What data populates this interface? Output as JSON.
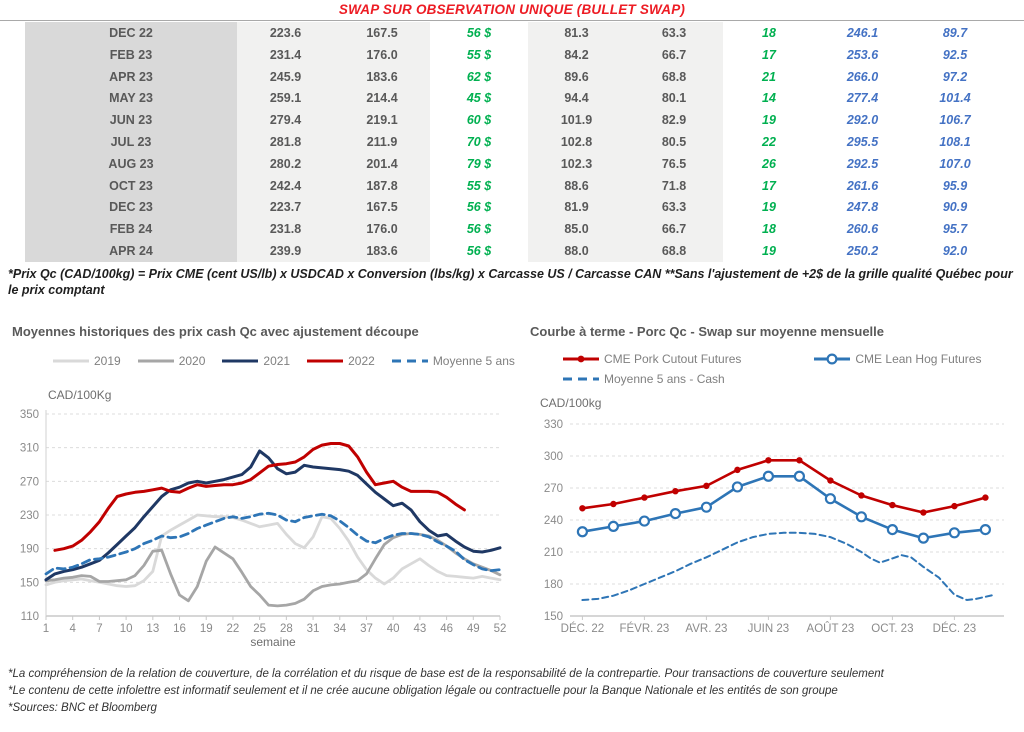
{
  "title": "SWAP SUR OBSERVATION UNIQUE (BULLET SWAP)",
  "colors": {
    "title_red": "#ED1C24",
    "table_green": "#00B050",
    "table_blue": "#4472C4",
    "text_gray": "#595959",
    "label_bg": "#d9d9d9",
    "block_bg": "#f1f1f0"
  },
  "table": {
    "rows": [
      {
        "month": "DEC 22",
        "cells": [
          "223.6",
          "167.5",
          "56 $",
          "81.3",
          "63.3",
          "18",
          "246.1",
          "89.7"
        ]
      },
      {
        "month": "FEB 23",
        "cells": [
          "231.4",
          "176.0",
          "55 $",
          "84.2",
          "66.7",
          "17",
          "253.6",
          "92.5"
        ]
      },
      {
        "month": "APR 23",
        "cells": [
          "245.9",
          "183.6",
          "62 $",
          "89.6",
          "68.8",
          "21",
          "266.0",
          "97.2"
        ]
      },
      {
        "month": "MAY 23",
        "cells": [
          "259.1",
          "214.4",
          "45 $",
          "94.4",
          "80.1",
          "14",
          "277.4",
          "101.4"
        ]
      },
      {
        "month": "JUN 23",
        "cells": [
          "279.4",
          "219.1",
          "60 $",
          "101.9",
          "82.9",
          "19",
          "292.0",
          "106.7"
        ]
      },
      {
        "month": "JUL 23",
        "cells": [
          "281.8",
          "211.9",
          "70 $",
          "102.8",
          "80.5",
          "22",
          "295.5",
          "108.1"
        ]
      },
      {
        "month": "AUG 23",
        "cells": [
          "280.2",
          "201.4",
          "79 $",
          "102.3",
          "76.5",
          "26",
          "292.5",
          "107.0"
        ]
      },
      {
        "month": "OCT 23",
        "cells": [
          "242.4",
          "187.8",
          "55 $",
          "88.6",
          "71.8",
          "17",
          "261.6",
          "95.9"
        ]
      },
      {
        "month": "DEC 23",
        "cells": [
          "223.7",
          "167.5",
          "56 $",
          "81.9",
          "63.3",
          "19",
          "247.8",
          "90.9"
        ]
      },
      {
        "month": "FEB 24",
        "cells": [
          "231.8",
          "176.0",
          "56 $",
          "85.0",
          "66.7",
          "18",
          "260.6",
          "95.7"
        ]
      },
      {
        "month": "APR 24",
        "cells": [
          "239.9",
          "183.6",
          "56 $",
          "88.0",
          "68.8",
          "19",
          "250.2",
          "92.0"
        ]
      }
    ]
  },
  "table_footnote": "*Prix Qc (CAD/100kg) = Prix CME (cent US/lb) x USDCAD x Conversion (lbs/kg) x Carcasse US / Carcasse CAN **Sans l'ajustement de +2$ de la grille qualité Québec pour le prix comptant",
  "chart_data": [
    {
      "type": "line",
      "title": "Moyennes historiques des prix cash Qc avec ajustement découpe",
      "unit_label": "CAD/100Kg",
      "xlabel": "semaine",
      "xlim": [
        1,
        52
      ],
      "ylim": [
        110,
        350
      ],
      "yticks": [
        110,
        150,
        190,
        230,
        270,
        310,
        350
      ],
      "xticks": [
        1,
        4,
        7,
        10,
        13,
        16,
        19,
        22,
        25,
        28,
        31,
        34,
        37,
        40,
        43,
        46,
        49,
        52
      ],
      "grid": "dashed-horizontal",
      "legend_position": "top",
      "series": [
        {
          "name": "2019",
          "color": "#d9d9d9",
          "style": "solid",
          "width": 2.8,
          "x_start": 1,
          "values": [
            147,
            150,
            152,
            153,
            154,
            152,
            150,
            148,
            146,
            145,
            146,
            152,
            163,
            205,
            212,
            218,
            224,
            230,
            229,
            228,
            228,
            227,
            224,
            220,
            216,
            218,
            220,
            207,
            196,
            191,
            204,
            228,
            226,
            214,
            199,
            180,
            165,
            155,
            148,
            155,
            166,
            172,
            178,
            170,
            163,
            158,
            157,
            156,
            155,
            157,
            155,
            153
          ]
        },
        {
          "name": "2020",
          "color": "#a6a6a6",
          "style": "solid",
          "width": 2.8,
          "x_start": 1,
          "values": [
            152,
            153,
            155,
            156,
            158,
            157,
            151,
            151,
            152,
            153,
            158,
            170,
            187,
            188,
            160,
            135,
            128,
            145,
            175,
            192,
            185,
            178,
            162,
            145,
            135,
            123,
            122,
            123,
            125,
            130,
            140,
            145,
            147,
            148,
            150,
            152,
            160,
            178,
            195,
            203,
            207,
            208,
            207,
            205,
            200,
            193,
            185,
            178,
            172,
            168,
            164,
            159
          ]
        },
        {
          "name": "2021",
          "color": "#1f3864",
          "style": "solid",
          "width": 3,
          "x_start": 1,
          "values": [
            153,
            160,
            163,
            165,
            168,
            172,
            176,
            185,
            195,
            205,
            215,
            228,
            240,
            252,
            260,
            263,
            268,
            270,
            268,
            270,
            272,
            275,
            278,
            287,
            306,
            298,
            285,
            279,
            281,
            289,
            287,
            286,
            285,
            284,
            282,
            277,
            267,
            257,
            249,
            241,
            244,
            236,
            222,
            212,
            205,
            207,
            199,
            192,
            187,
            186,
            188,
            191
          ]
        },
        {
          "name": "2022",
          "color": "#c00000",
          "style": "solid",
          "width": 3,
          "x_start": 2,
          "values": [
            188,
            190,
            193,
            200,
            210,
            222,
            238,
            252,
            255,
            257,
            258,
            260,
            262,
            258,
            257,
            262,
            266,
            264,
            265,
            266,
            266,
            268,
            272,
            280,
            288,
            290,
            291,
            293,
            299,
            308,
            313,
            315,
            315,
            312,
            299,
            281,
            266,
            268,
            270,
            263,
            258,
            258,
            258,
            257,
            251,
            243,
            236
          ]
        },
        {
          "name": "Moyenne 5 ans",
          "color": "#2e75b6",
          "style": "dashed",
          "width": 2.8,
          "x_start": 1,
          "values": [
            160,
            167,
            166,
            168,
            172,
            177,
            178,
            180,
            183,
            186,
            190,
            196,
            200,
            205,
            203,
            204,
            208,
            214,
            218,
            222,
            226,
            228,
            226,
            228,
            231,
            232,
            230,
            224,
            222,
            227,
            229,
            231,
            229,
            223,
            215,
            206,
            199,
            197,
            202,
            206,
            208,
            208,
            207,
            204,
            198,
            193,
            187,
            177,
            171,
            166,
            164,
            165
          ]
        }
      ]
    },
    {
      "type": "line",
      "title": "Courbe à terme - Porc Qc - Swap sur moyenne mensuelle",
      "unit_label": "CAD/100kg",
      "xlabel": "",
      "xlim": [
        -0.4,
        13.6
      ],
      "ylim": [
        150,
        330
      ],
      "yticks": [
        150,
        180,
        210,
        240,
        270,
        300,
        330
      ],
      "xticks": [
        0,
        2,
        4,
        6,
        8,
        10,
        12
      ],
      "xtick_labels": [
        "DÉC. 22",
        "FÉVR. 23",
        "AVR. 23",
        "JUIN 23",
        "AOÛT 23",
        "OCT. 23",
        "DÉC. 23"
      ],
      "grid": "dashed-horizontal",
      "legend_position": "top",
      "series": [
        {
          "name": "CME Pork Cutout Futures",
          "color": "#c00000",
          "style": "solid",
          "width": 2.6,
          "marker": "dot",
          "x_start": 0,
          "values": [
            251,
            255,
            261,
            267,
            272,
            287,
            296,
            296,
            277,
            263,
            254,
            247,
            253,
            261
          ]
        },
        {
          "name": "CME Lean Hog Futures",
          "color": "#2e75b6",
          "style": "solid",
          "width": 2.6,
          "marker": "circle",
          "x_start": 0,
          "values": [
            229,
            234,
            239,
            246,
            252,
            271,
            281,
            281,
            260,
            243,
            231,
            223,
            228,
            231
          ]
        },
        {
          "name": "Moyenne 5 ans - Cash",
          "color": "#2e75b6",
          "style": "dashed",
          "width": 2,
          "points": [
            [
              0,
              165
            ],
            [
              0.5,
              166
            ],
            [
              1,
              169
            ],
            [
              1.5,
              174
            ],
            [
              2,
              180
            ],
            [
              2.5,
              186
            ],
            [
              3,
              192
            ],
            [
              3.5,
              199
            ],
            [
              4,
              205
            ],
            [
              4.5,
              212
            ],
            [
              5,
              219
            ],
            [
              5.5,
              224
            ],
            [
              6,
              227
            ],
            [
              6.5,
              228
            ],
            [
              7,
              228
            ],
            [
              7.5,
              227
            ],
            [
              8,
              224
            ],
            [
              8.5,
              218
            ],
            [
              9,
              210
            ],
            [
              9.3,
              204
            ],
            [
              9.6,
              200
            ],
            [
              10,
              204
            ],
            [
              10.3,
              207
            ],
            [
              10.6,
              205
            ],
            [
              11,
              196
            ],
            [
              11.5,
              186
            ],
            [
              12,
              170
            ],
            [
              12.4,
              165
            ],
            [
              12.7,
              166
            ],
            [
              13,
              168
            ],
            [
              13.3,
              170
            ]
          ]
        }
      ]
    }
  ],
  "footer": {
    "lines": [
      "*La compréhension de la relation de couverture, de la corrélation et du risque de base est de la responsabilité de la contrepartie. Pour transactions de couverture seulement",
      "*Le contenu de cette infolettre est informatif seulement et il ne crée aucune obligation légale ou contractuelle pour la Banque Nationale et les entités de son groupe",
      "*Sources: BNC et Bloomberg"
    ]
  }
}
